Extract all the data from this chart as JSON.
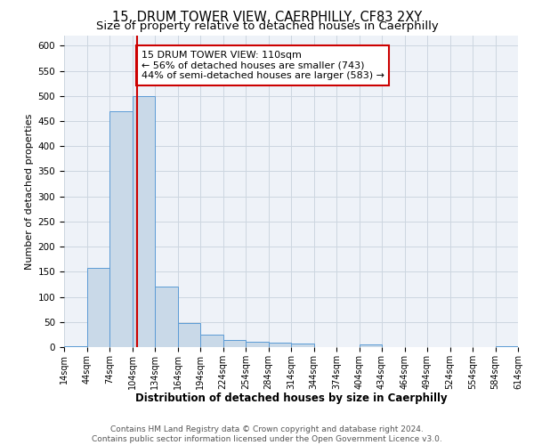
{
  "title": "15, DRUM TOWER VIEW, CAERPHILLY, CF83 2XY",
  "subtitle": "Size of property relative to detached houses in Caerphilly",
  "xlabel": "Distribution of detached houses by size in Caerphilly",
  "ylabel": "Number of detached properties",
  "bin_edges": [
    14,
    44,
    74,
    104,
    134,
    164,
    194,
    224,
    254,
    284,
    314,
    344,
    374,
    404,
    434,
    464,
    494,
    524,
    554,
    584,
    614
  ],
  "bin_counts": [
    2,
    158,
    470,
    500,
    120,
    47,
    25,
    15,
    10,
    8,
    7,
    0,
    0,
    5,
    0,
    0,
    0,
    0,
    0,
    2
  ],
  "bar_color": "#c9d9e8",
  "bar_edge_color": "#5b9bd5",
  "property_size": 110,
  "vline_color": "#cc0000",
  "annotation_line1": "15 DRUM TOWER VIEW: 110sqm",
  "annotation_line2": "← 56% of detached houses are smaller (743)",
  "annotation_line3": "44% of semi-detached houses are larger (583) →",
  "annotation_box_edge_color": "#cc0000",
  "annotation_box_face_color": "#ffffff",
  "ylim": [
    0,
    620
  ],
  "yticks": [
    0,
    50,
    100,
    150,
    200,
    250,
    300,
    350,
    400,
    450,
    500,
    550,
    600
  ],
  "grid_color": "#ccd6e0",
  "background_color": "#eef2f8",
  "footer_text": "Contains HM Land Registry data © Crown copyright and database right 2024.\nContains public sector information licensed under the Open Government Licence v3.0.",
  "title_fontsize": 10.5,
  "subtitle_fontsize": 9.5,
  "xlabel_fontsize": 8.5,
  "ylabel_fontsize": 8,
  "annotation_fontsize": 8,
  "footer_fontsize": 6.5,
  "tick_fontsize": 7
}
